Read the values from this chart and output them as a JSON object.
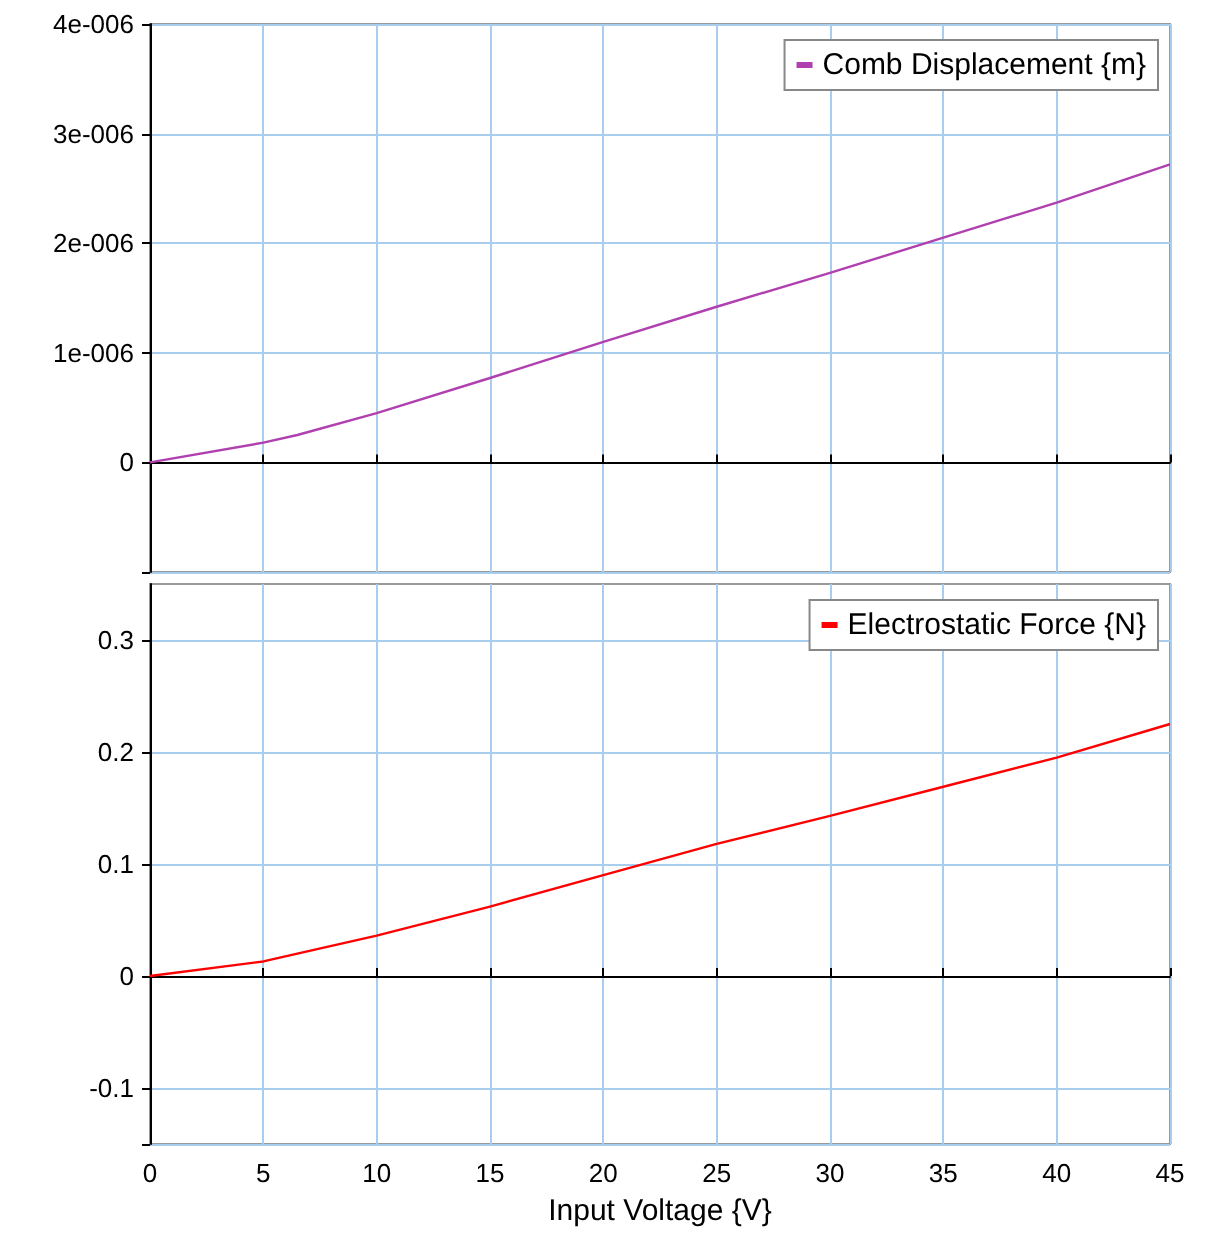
{
  "chart_data": [
    {
      "type": "line",
      "x": [
        0,
        5,
        6.5,
        10,
        15,
        20,
        25,
        30,
        35,
        40,
        45
      ],
      "series": [
        {
          "name": "Comb Displacement {m}",
          "color": "#b040b0",
          "values": [
            0,
            1.8e-07,
            2.5e-07,
            4.5e-07,
            7.7e-07,
            1.1e-06,
            1.42e-06,
            1.73e-06,
            2.05e-06,
            2.37e-06,
            2.72e-06
          ]
        }
      ],
      "xlim": [
        0,
        45
      ],
      "xticks": [
        0,
        5,
        10,
        15,
        20,
        25,
        30,
        35,
        40,
        45
      ],
      "ylim": [
        -1e-06,
        4e-06
      ],
      "yticks": [
        {
          "value": -1e-06,
          "label": null
        },
        {
          "value": 0,
          "label": "0"
        },
        {
          "value": 1e-06,
          "label": "1e-006"
        },
        {
          "value": 2e-06,
          "label": "2e-006"
        },
        {
          "value": 3e-06,
          "label": "3e-006"
        },
        {
          "value": 4e-06,
          "label": "4e-006"
        }
      ],
      "tick_labels": "y",
      "grid": true,
      "legend": "top right",
      "marker": "none",
      "line_style": "solid"
    },
    {
      "type": "line",
      "x": [
        0,
        5,
        6.5,
        10,
        15,
        20,
        25,
        30,
        35,
        40,
        45
      ],
      "series": [
        {
          "name": "Electrostatic Force {N}",
          "color": "#ff0000",
          "values": [
            0,
            0.013,
            0.02,
            0.036,
            0.062,
            0.09,
            0.118,
            0.143,
            0.169,
            0.195,
            0.225
          ]
        }
      ],
      "xlabel": "Input Voltage {V}",
      "xlim": [
        0,
        45
      ],
      "xticks": [
        0,
        5,
        10,
        15,
        20,
        25,
        30,
        35,
        40,
        45
      ],
      "ylim": [
        -0.15,
        0.35
      ],
      "yticks": [
        {
          "value": -0.15,
          "label": null
        },
        -0.1,
        0,
        0.1,
        0.2,
        0.3
      ],
      "grid": true,
      "legend": "top right",
      "marker": "none",
      "line_style": "solid"
    }
  ]
}
